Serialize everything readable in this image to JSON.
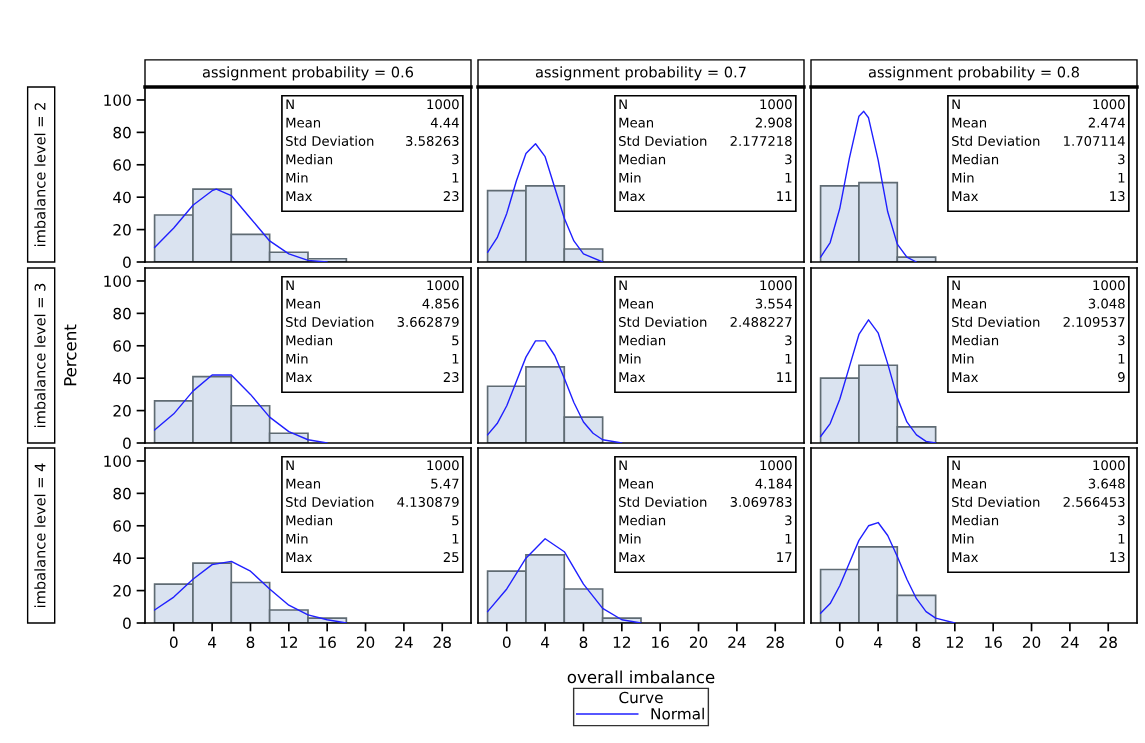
{
  "chart_data": [
    {
      "type": "histogram",
      "title": "assignment probability = 0.6",
      "ylabel": "imbalance level = 2",
      "bins": [
        -2,
        2,
        6,
        10,
        14,
        18
      ],
      "values": [
        29,
        45,
        17,
        6,
        2
      ],
      "color": "#dae3f0",
      "xlim": [
        -3,
        31
      ],
      "ylim": [
        0,
        108
      ],
      "xticks": [
        0,
        4,
        8,
        12,
        16,
        20,
        24,
        28
      ],
      "yticks": [
        0,
        20,
        40,
        60,
        80,
        100
      ],
      "tick_labels": "y",
      "series": [
        {
          "type": "line",
          "color": "#1f1fff",
          "x": [
            -2,
            0,
            2,
            4,
            4.44,
            6,
            8,
            10,
            12,
            14,
            16
          ],
          "values": [
            9,
            21,
            35,
            44,
            45,
            41,
            27,
            13,
            5,
            1,
            0
          ]
        }
      ],
      "annotations": [
        "N",
        "1000",
        "Mean",
        "4.44",
        "Std Deviation",
        "3.58263",
        "Median",
        "3",
        "Min",
        "1",
        "Max",
        "23"
      ]
    },
    {
      "type": "histogram",
      "title": "assignment probability = 0.7",
      "bins": [
        -2,
        2,
        6,
        10,
        14
      ],
      "values": [
        44,
        47,
        8,
        null
      ],
      "color": "#dae3f0",
      "xlim": [
        -3,
        31
      ],
      "ylim": [
        0,
        108
      ],
      "xticks": [
        0,
        4,
        8,
        12,
        16,
        20,
        24,
        28
      ],
      "yticks": [
        0,
        20,
        40,
        60,
        80,
        100
      ],
      "tick_labels": false,
      "series": [
        {
          "type": "line",
          "color": "#1f1fff",
          "x": [
            -2,
            -1,
            0,
            1,
            2,
            3,
            4,
            5,
            6,
            7,
            8,
            10
          ],
          "values": [
            6,
            15,
            30,
            50,
            67,
            73,
            65,
            46,
            27,
            13,
            5,
            0
          ]
        }
      ],
      "annotations": [
        "N",
        "1000",
        "Mean",
        "2.908",
        "Std Deviation",
        "2.177218",
        "Median",
        "3",
        "Min",
        "1",
        "Max",
        "11"
      ]
    },
    {
      "type": "histogram",
      "title": "assignment probability = 0.8",
      "bins": [
        -2,
        2,
        6,
        10
      ],
      "values": [
        47,
        49,
        3
      ],
      "color": "#dae3f0",
      "xlim": [
        -3,
        31
      ],
      "ylim": [
        0,
        108
      ],
      "xticks": [
        0,
        4,
        8,
        12,
        16,
        20,
        24,
        28
      ],
      "yticks": [
        0,
        20,
        40,
        60,
        80,
        100
      ],
      "tick_labels": false,
      "series": [
        {
          "type": "line",
          "color": "#1f1fff",
          "x": [
            -2,
            -1,
            0,
            1,
            2,
            2.5,
            3,
            4,
            5,
            6,
            7,
            8
          ],
          "values": [
            3,
            12,
            33,
            64,
            90,
            93,
            89,
            63,
            31,
            11,
            3,
            0
          ]
        }
      ],
      "annotations": [
        "N",
        "1000",
        "Mean",
        "2.474",
        "Std Deviation",
        "1.707114",
        "Median",
        "3",
        "Min",
        "1",
        "Max",
        "13"
      ]
    },
    {
      "type": "histogram",
      "ylabel": "imbalance level = 3",
      "bins": [
        -2,
        2,
        6,
        10,
        14,
        18
      ],
      "values": [
        26,
        41,
        23,
        6,
        null
      ],
      "color": "#dae3f0",
      "xlim": [
        -3,
        31
      ],
      "ylim": [
        0,
        108
      ],
      "xticks": [
        0,
        4,
        8,
        12,
        16,
        20,
        24,
        28
      ],
      "yticks": [
        0,
        20,
        40,
        60,
        80,
        100
      ],
      "tick_labels": "y",
      "series": [
        {
          "type": "line",
          "color": "#1f1fff",
          "x": [
            -2,
            0,
            2,
            4,
            6,
            8,
            10,
            12,
            14,
            16
          ],
          "values": [
            8,
            18,
            32,
            42,
            42,
            30,
            16,
            7,
            2,
            0
          ]
        }
      ],
      "annotations": [
        "N",
        "1000",
        "Mean",
        "4.856",
        "Std Deviation",
        "3.662879",
        "Median",
        "5",
        "Min",
        "1",
        "Max",
        "23",
        "Percent"
      ]
    },
    {
      "type": "histogram",
      "bins": [
        -2,
        2,
        6,
        10,
        14
      ],
      "values": [
        35,
        47,
        16,
        null
      ],
      "color": "#dae3f0",
      "xlim": [
        -3,
        31
      ],
      "ylim": [
        0,
        108
      ],
      "xticks": [
        0,
        4,
        8,
        12,
        16,
        20,
        24,
        28
      ],
      "yticks": [
        0,
        20,
        40,
        60,
        80,
        100
      ],
      "tick_labels": false,
      "series": [
        {
          "type": "line",
          "color": "#1f1fff",
          "x": [
            -2,
            -1,
            0,
            1,
            2,
            3,
            4,
            5,
            6,
            7,
            8,
            9,
            10,
            12
          ],
          "values": [
            5,
            12,
            23,
            38,
            53,
            63,
            63,
            54,
            40,
            25,
            13,
            6,
            2,
            0
          ]
        }
      ],
      "annotations": [
        "N",
        "1000",
        "Mean",
        "3.554",
        "Std Deviation",
        "2.488227",
        "Median",
        "3",
        "Min",
        "1",
        "Max",
        "11"
      ]
    },
    {
      "type": "histogram",
      "bins": [
        -2,
        2,
        6,
        10
      ],
      "values": [
        40,
        48,
        10
      ],
      "color": "#dae3f0",
      "xlim": [
        -3,
        31
      ],
      "ylim": [
        0,
        108
      ],
      "xticks": [
        0,
        4,
        8,
        12,
        16,
        20,
        24,
        28
      ],
      "yticks": [
        0,
        20,
        40,
        60,
        80,
        100
      ],
      "tick_labels": false,
      "series": [
        {
          "type": "line",
          "color": "#1f1fff",
          "x": [
            -2,
            -1,
            0,
            1,
            2,
            3,
            4,
            5,
            6,
            7,
            8,
            9,
            10
          ],
          "values": [
            4,
            12,
            27,
            47,
            67,
            76,
            68,
            49,
            28,
            13,
            5,
            1,
            0
          ]
        }
      ],
      "annotations": [
        "N",
        "1000",
        "Mean",
        "3.048",
        "Std Deviation",
        "2.109537",
        "Median",
        "3",
        "Min",
        "1",
        "Max",
        "9"
      ]
    },
    {
      "type": "histogram",
      "ylabel": "imbalance level = 4",
      "bins": [
        -2,
        2,
        6,
        10,
        14,
        18
      ],
      "values": [
        24,
        37,
        25,
        8,
        3
      ],
      "color": "#dae3f0",
      "xlim": [
        -3,
        31
      ],
      "ylim": [
        0,
        108
      ],
      "xticks": [
        0,
        4,
        8,
        12,
        16,
        20,
        24,
        28
      ],
      "yticks": [
        0,
        20,
        40,
        60,
        80,
        100
      ],
      "series": [
        {
          "type": "line",
          "color": "#1f1fff",
          "x": [
            -2,
            0,
            2,
            4,
            6,
            8,
            10,
            12,
            14,
            16,
            18
          ],
          "values": [
            8,
            16,
            27,
            36,
            38,
            32,
            21,
            11,
            5,
            2,
            0
          ]
        }
      ],
      "annotations": [
        "N",
        "1000",
        "Mean",
        "5.47",
        "Std Deviation",
        "4.130879",
        "Median",
        "5",
        "Min",
        "1",
        "Max",
        "25"
      ]
    },
    {
      "type": "histogram",
      "xlabel": "overall imbalance",
      "legend_title": "Curve",
      "legend": "bottom",
      "bins": [
        -2,
        2,
        6,
        10,
        14
      ],
      "values": [
        32,
        42,
        21,
        3
      ],
      "color": "#dae3f0",
      "xlim": [
        -3,
        31
      ],
      "ylim": [
        0,
        108
      ],
      "xticks": [
        0,
        4,
        8,
        12,
        16,
        20,
        24,
        28
      ],
      "yticks": [
        0,
        20,
        40,
        60,
        80,
        100
      ],
      "tick_labels": "x",
      "series": [
        {
          "type": "line",
          "name": "Normal",
          "color": "#1f1fff",
          "x": [
            -2,
            0,
            2,
            4,
            6,
            8,
            10,
            12,
            14
          ],
          "values": [
            7,
            21,
            40,
            52,
            44,
            24,
            9,
            2,
            0
          ]
        }
      ],
      "annotations": [
        "N",
        "1000",
        "Mean",
        "4.184",
        "Std Deviation",
        "3.069783",
        "Median",
        "3",
        "Min",
        "1",
        "Max",
        "17"
      ]
    },
    {
      "type": "histogram",
      "bins": [
        -2,
        2,
        6,
        10,
        14
      ],
      "values": [
        33,
        47,
        17,
        null
      ],
      "color": "#dae3f0",
      "xlim": [
        -3,
        31
      ],
      "ylim": [
        0,
        108
      ],
      "xticks": [
        0,
        4,
        8,
        12,
        16,
        20,
        24,
        28
      ],
      "yticks": [
        0,
        20,
        40,
        60,
        80,
        100
      ],
      "tick_labels": "x",
      "series": [
        {
          "type": "line",
          "color": "#1f1fff",
          "x": [
            -2,
            -1,
            0,
            1,
            2,
            3,
            4,
            5,
            6,
            7,
            8,
            9,
            10,
            12
          ],
          "values": [
            6,
            12,
            23,
            37,
            51,
            60,
            62,
            54,
            41,
            27,
            15,
            7,
            3,
            0
          ]
        }
      ],
      "annotations": [
        "N",
        "1000",
        "Mean",
        "3.648",
        "Std Deviation",
        "2.566453",
        "Median",
        "3",
        "Min",
        "1",
        "Max",
        "13"
      ]
    }
  ]
}
